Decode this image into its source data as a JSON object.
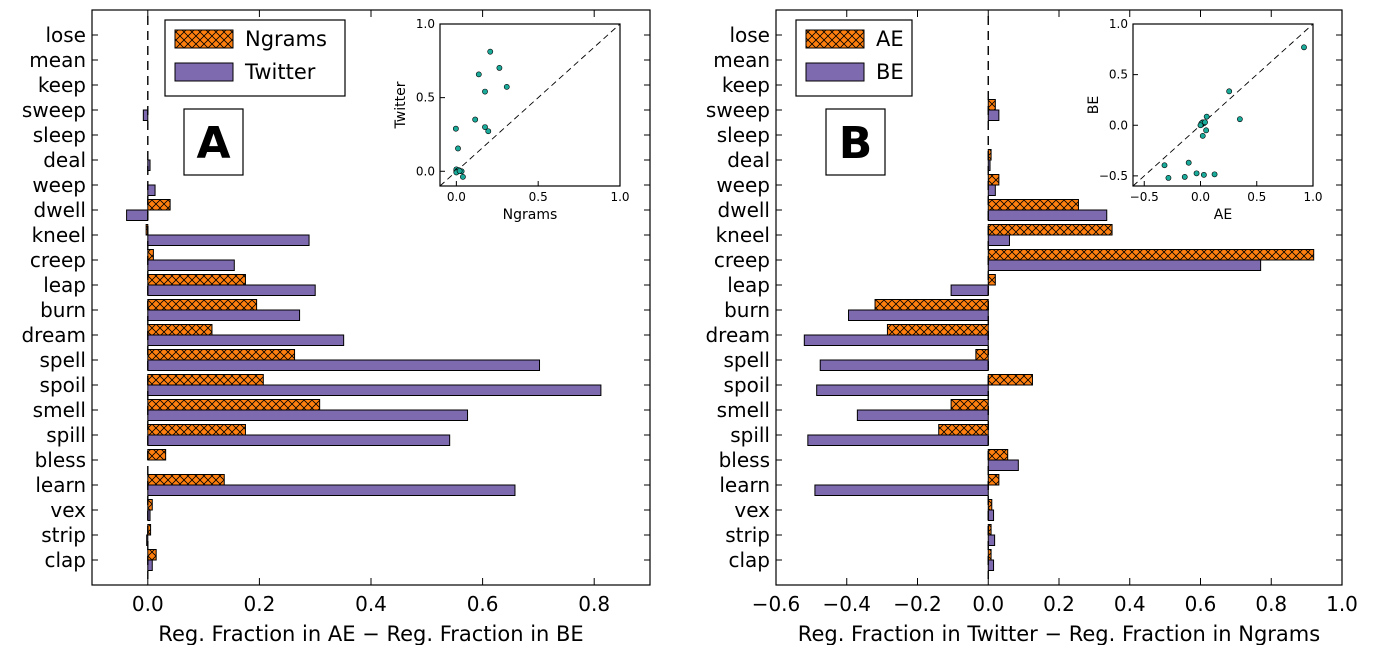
{
  "figure": {
    "colors": {
      "orange": "#ff7f0e",
      "purple": "#7e6aaf",
      "inset_point": "#1aaa9a"
    }
  },
  "chart_data": [
    {
      "type": "bar",
      "orientation": "horizontal",
      "panel_label": "A",
      "xlabel": "Reg. Fraction in AE − Reg. Fraction in BE",
      "ylabel": "",
      "xlim": [
        -0.1,
        0.9
      ],
      "xticks": [
        0.0,
        0.2,
        0.4,
        0.6,
        0.8
      ],
      "xtick_labels": [
        "0.0",
        "0.2",
        "0.4",
        "0.6",
        "0.8"
      ],
      "grid": false,
      "legend_position": "top-left",
      "categories": [
        "lose",
        "mean",
        "keep",
        "sweep",
        "sleep",
        "deal",
        "weep",
        "dwell",
        "kneel",
        "creep",
        "leap",
        "burn",
        "dream",
        "spell",
        "spoil",
        "smell",
        "spill",
        "bless",
        "learn",
        "vex",
        "strip",
        "clap"
      ],
      "series": [
        {
          "name": "Ngrams",
          "color": "#ff7f0e",
          "hatch": "cross",
          "values": [
            0,
            0,
            0,
            0,
            0,
            0,
            0,
            0.04,
            -0.003,
            0.01,
            0.175,
            0.195,
            0.115,
            0.263,
            0.207,
            0.308,
            0.175,
            0.032,
            0.137,
            0.008,
            0.005,
            0.015
          ]
        },
        {
          "name": "Twitter",
          "color": "#7e6aaf",
          "hatch": "none",
          "values": [
            0,
            0,
            0,
            -0.008,
            0,
            0.004,
            0.013,
            -0.038,
            0.289,
            0.155,
            0.3,
            0.272,
            0.351,
            0.702,
            0.812,
            0.573,
            0.541,
            0.0,
            0.658,
            0.004,
            -0.002,
            0.008
          ]
        }
      ],
      "inset": {
        "type": "scatter",
        "xlabel": "Ngrams",
        "ylabel": "Twitter",
        "xlim": [
          -0.1,
          1.0
        ],
        "ylim": [
          -0.1,
          1.0
        ],
        "xtick_labels": [
          "0.0",
          "0.5",
          "1.0"
        ],
        "ytick_labels": [
          "0.0",
          "0.5",
          "1.0"
        ],
        "diagonal": true,
        "points": [
          [
            0.04,
            -0.038
          ],
          [
            0.01,
            0.155
          ],
          [
            0.175,
            0.3
          ],
          [
            0.195,
            0.272
          ],
          [
            0.115,
            0.351
          ],
          [
            0.263,
            0.702
          ],
          [
            0.207,
            0.812
          ],
          [
            0.308,
            0.573
          ],
          [
            0.175,
            0.541
          ],
          [
            0.137,
            0.658
          ],
          [
            0.0,
            0.0
          ],
          [
            0.0,
            0.004
          ],
          [
            0.0,
            0.013
          ],
          [
            -0.003,
            0.289
          ],
          [
            0.032,
            0.0
          ],
          [
            0.008,
            0.004
          ],
          [
            0.005,
            -0.002
          ],
          [
            0.015,
            0.008
          ],
          [
            0.0,
            -0.008
          ],
          [
            0.02,
            0.002
          ]
        ]
      }
    },
    {
      "type": "bar",
      "orientation": "horizontal",
      "panel_label": "B",
      "xlabel": "Reg. Fraction in Twitter − Reg. Fraction in Ngrams",
      "ylabel": "",
      "xlim": [
        -0.6,
        1.0
      ],
      "xticks": [
        -0.6,
        -0.4,
        -0.2,
        0.0,
        0.2,
        0.4,
        0.6,
        0.8,
        1.0
      ],
      "xtick_labels": [
        "−0.6",
        "−0.4",
        "−0.2",
        "0.0",
        "0.2",
        "0.4",
        "0.6",
        "0.8",
        "1.0"
      ],
      "grid": false,
      "legend_position": "top-left",
      "categories": [
        "lose",
        "mean",
        "keep",
        "sweep",
        "sleep",
        "deal",
        "weep",
        "dwell",
        "kneel",
        "creep",
        "leap",
        "burn",
        "dream",
        "spell",
        "spoil",
        "smell",
        "spill",
        "bless",
        "learn",
        "vex",
        "strip",
        "clap"
      ],
      "series": [
        {
          "name": "AE",
          "color": "#ff7f0e",
          "hatch": "cross",
          "values": [
            0,
            0,
            0,
            0.02,
            0,
            0.008,
            0.03,
            0.255,
            0.35,
            0.92,
            0.02,
            -0.32,
            -0.285,
            -0.035,
            0.125,
            -0.105,
            -0.14,
            0.055,
            0.03,
            0.01,
            0.008,
            0.008
          ]
        },
        {
          "name": "BE",
          "color": "#7e6aaf",
          "hatch": "none",
          "values": [
            0,
            0,
            0,
            0.03,
            0,
            0.005,
            0.02,
            0.335,
            0.06,
            0.77,
            -0.105,
            -0.395,
            -0.52,
            -0.475,
            -0.485,
            -0.37,
            -0.51,
            0.085,
            -0.49,
            0.015,
            0.018,
            0.015
          ]
        }
      ],
      "inset": {
        "type": "scatter",
        "xlabel": "AE",
        "ylabel": "BE",
        "xlim": [
          -0.6,
          1.0
        ],
        "ylim": [
          -0.6,
          1.0
        ],
        "xtick_labels": [
          "−0.5",
          "0.0",
          "0.5",
          "1.0"
        ],
        "ytick_labels": [
          "−0.5",
          "0.0",
          "0.5",
          "1.0"
        ],
        "diagonal": true,
        "points": [
          [
            0.92,
            0.77
          ],
          [
            0.255,
            0.335
          ],
          [
            0.35,
            0.06
          ],
          [
            -0.32,
            -0.395
          ],
          [
            -0.285,
            -0.52
          ],
          [
            -0.035,
            -0.475
          ],
          [
            0.125,
            -0.485
          ],
          [
            -0.105,
            -0.37
          ],
          [
            -0.14,
            -0.51
          ],
          [
            0.055,
            0.085
          ],
          [
            0.03,
            -0.49
          ],
          [
            0.02,
            0.03
          ],
          [
            0.008,
            0.005
          ],
          [
            0.03,
            0.02
          ],
          [
            0.02,
            -0.105
          ],
          [
            0.01,
            0.015
          ],
          [
            0.008,
            0.018
          ],
          [
            0.0,
            0.0
          ],
          [
            0.04,
            0.03
          ],
          [
            0.05,
            -0.05
          ]
        ]
      }
    }
  ]
}
